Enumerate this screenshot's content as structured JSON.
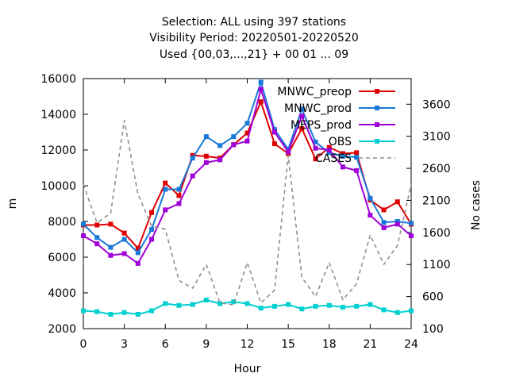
{
  "chart_data": {
    "type": "line",
    "title_lines": [
      "Selection: ALL using   397 stations",
      "Visibility   Period: 20220501-20220520",
      "Used {00,03,...,21} + 00 01 ... 09"
    ],
    "xlabel": "Hour",
    "ylabel": "m",
    "y2label": "No cases",
    "xlim": [
      0,
      24
    ],
    "ylim": [
      2000,
      16000
    ],
    "y2lim": [
      100,
      4000
    ],
    "xticks": [
      "0",
      "3",
      "6",
      "9",
      "12",
      "15",
      "18",
      "21",
      "24"
    ],
    "yticks": [
      "2000",
      "4000",
      "6000",
      "8000",
      "10000",
      "12000",
      "14000",
      "16000"
    ],
    "y2ticks": [
      "100",
      "600",
      "1100",
      "1600",
      "2100",
      "2600",
      "3100",
      "3600"
    ],
    "grid": false,
    "legend_position": "top-right",
    "x": [
      0,
      1,
      2,
      3,
      4,
      5,
      6,
      7,
      8,
      9,
      10,
      11,
      12,
      13,
      14,
      15,
      16,
      17,
      18,
      19,
      20,
      21,
      22,
      23,
      24
    ],
    "series": [
      {
        "name": "MNWC_preop",
        "color": "#e00000",
        "marker": "square",
        "values": [
          7800,
          7800,
          7850,
          7350,
          6500,
          8500,
          10150,
          9450,
          11700,
          11650,
          11550,
          12300,
          12950,
          14700,
          12350,
          11800,
          13200,
          11500,
          12150,
          11800,
          11850,
          9200,
          8650,
          9100,
          7850
        ]
      },
      {
        "name": "MNWC_prod",
        "color": "#1a78d8",
        "marker": "square",
        "values": [
          7850,
          7100,
          6550,
          7000,
          6250,
          7550,
          9800,
          9800,
          11550,
          12750,
          12250,
          12750,
          13500,
          15800,
          13150,
          12050,
          14300,
          12450,
          11850,
          11650,
          11600,
          9300,
          7950,
          8000,
          7900
        ]
      },
      {
        "name": "MEPS_prod",
        "color": "#a000d8",
        "marker": "square",
        "values": [
          7200,
          6750,
          6100,
          6200,
          5650,
          7000,
          8650,
          9000,
          10550,
          11300,
          11450,
          12300,
          12500,
          15400,
          13000,
          11900,
          13900,
          12100,
          12000,
          11050,
          10850,
          8350,
          7650,
          7850,
          7200
        ]
      },
      {
        "name": "OBS",
        "color": "#00d0d0",
        "marker": "square",
        "values": [
          3000,
          2950,
          2800,
          2900,
          2800,
          3000,
          3400,
          3300,
          3350,
          3600,
          3400,
          3500,
          3400,
          3150,
          3250,
          3350,
          3100,
          3250,
          3300,
          3200,
          3250,
          3350,
          3050,
          2900,
          3000
        ]
      },
      {
        "name": "CASES",
        "color": "#909090",
        "dash": true,
        "axis": "y2",
        "values": [
          2350,
          1750,
          1900,
          3350,
          2200,
          1700,
          1650,
          850,
          730,
          1100,
          500,
          470,
          1130,
          500,
          700,
          2800,
          900,
          600,
          1130,
          550,
          800,
          1560,
          1100,
          1400,
          2350
        ]
      }
    ]
  }
}
